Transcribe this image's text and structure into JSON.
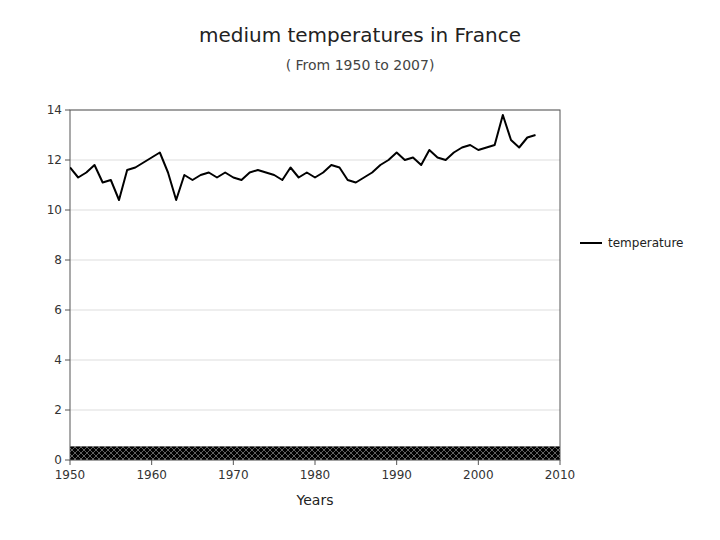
{
  "chart_data": {
    "type": "line",
    "title": "medium temperatures in France",
    "subtitle": "( From 1950 to 2007)",
    "xlabel": "Years",
    "x": [
      1950,
      1951,
      1952,
      1953,
      1954,
      1955,
      1956,
      1957,
      1958,
      1959,
      1960,
      1961,
      1962,
      1963,
      1964,
      1965,
      1966,
      1967,
      1968,
      1969,
      1970,
      1971,
      1972,
      1973,
      1974,
      1975,
      1976,
      1977,
      1978,
      1979,
      1980,
      1981,
      1982,
      1983,
      1984,
      1985,
      1986,
      1987,
      1988,
      1989,
      1990,
      1991,
      1992,
      1993,
      1994,
      1995,
      1996,
      1997,
      1998,
      1999,
      2000,
      2001,
      2002,
      2003,
      2004,
      2005,
      2006,
      2007
    ],
    "series": [
      {
        "name": "temperature",
        "color": "#000000",
        "values": [
          11.7,
          11.3,
          11.5,
          11.8,
          11.1,
          11.2,
          10.4,
          11.6,
          11.7,
          11.9,
          12.1,
          12.3,
          11.5,
          10.4,
          11.4,
          11.2,
          11.4,
          11.5,
          11.3,
          11.5,
          11.3,
          11.2,
          11.5,
          11.6,
          11.5,
          11.4,
          11.2,
          11.7,
          11.3,
          11.5,
          11.3,
          11.5,
          11.8,
          11.7,
          11.2,
          11.1,
          11.3,
          11.5,
          11.8,
          12.0,
          12.3,
          12.0,
          12.1,
          11.8,
          12.4,
          12.1,
          12.0,
          12.3,
          12.5,
          12.6,
          12.4,
          12.5,
          12.6,
          13.8,
          12.8,
          12.5,
          12.9,
          13.0
        ]
      },
      {
        "type": "bar",
        "color": "#cccccc",
        "x": [
          1980
        ],
        "values": [
          0.55
        ]
      }
    ],
    "xlim": [
      1950,
      2010
    ],
    "ylim": [
      0,
      14
    ],
    "xticks": [
      1950,
      1960,
      1970,
      1980,
      1990,
      2000,
      2010
    ],
    "yticks": [
      0,
      2,
      4,
      6,
      8,
      10,
      12,
      14
    ],
    "grid": "y",
    "legend": "right"
  }
}
